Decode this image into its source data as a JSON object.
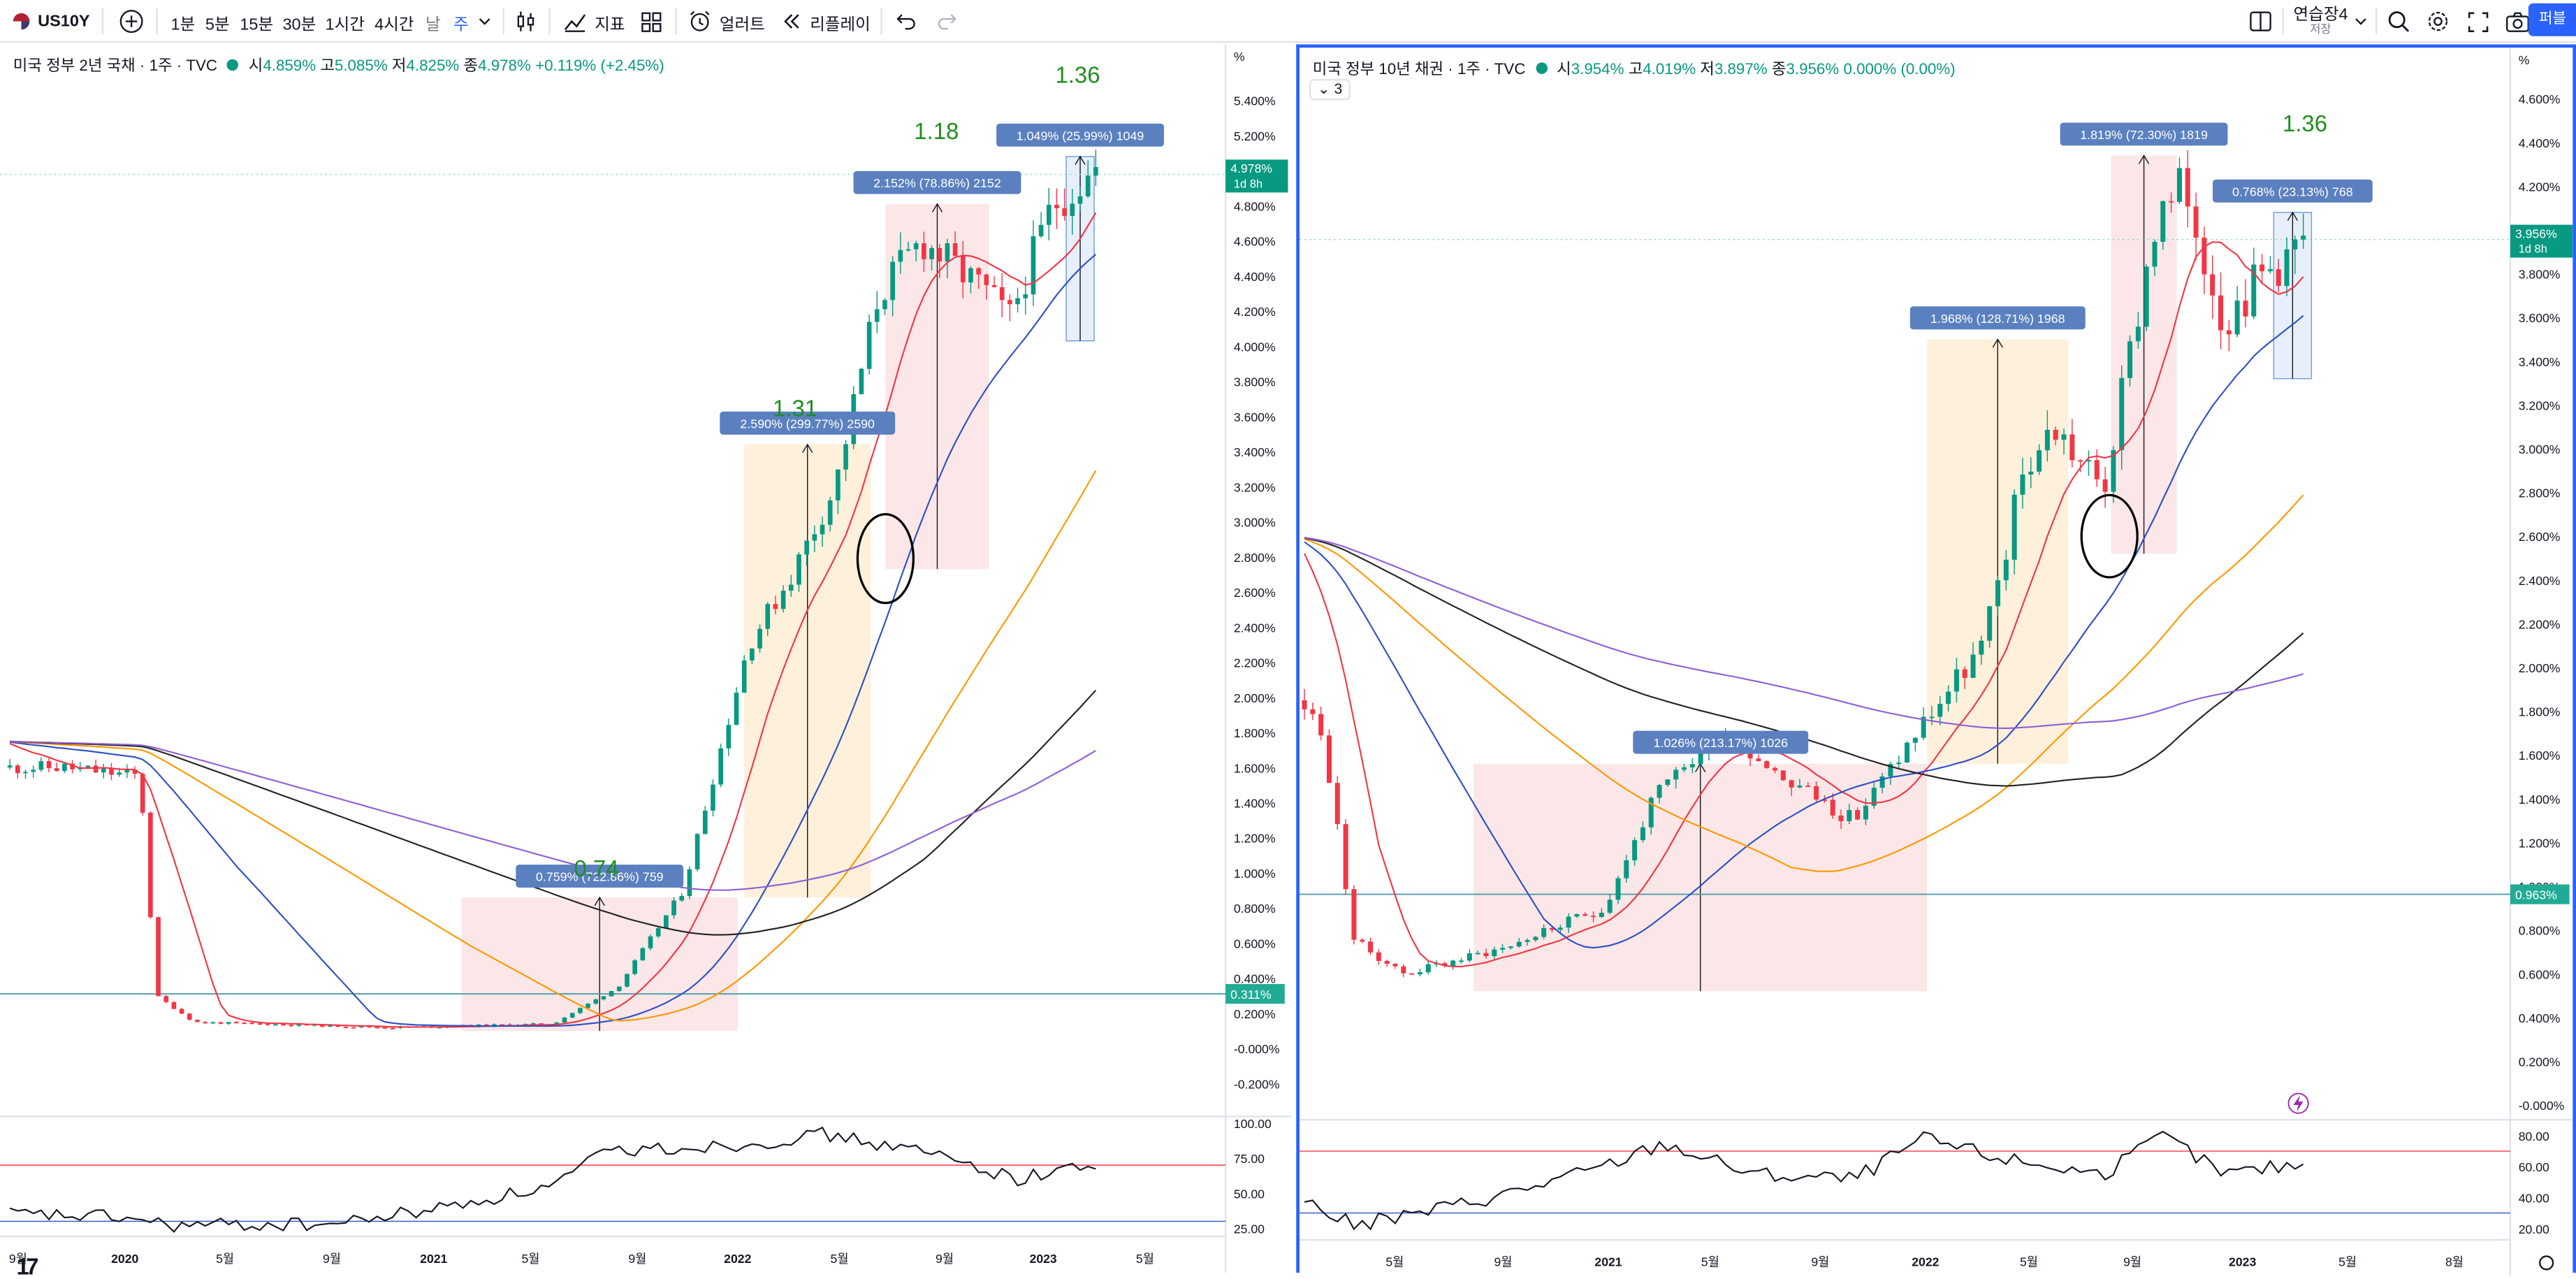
{
  "toolbar": {
    "symbol": "US10Y",
    "intervals": [
      "1분",
      "5분",
      "15분",
      "30분",
      "1시간",
      "4시간",
      "날",
      "주"
    ],
    "indicators_label": "지표",
    "alert_label": "얼러트",
    "replay_label": "리플레이",
    "layout_name": "연습장4",
    "layout_sub": "저장",
    "publish_label": "퍼블"
  },
  "left_chart": {
    "title": "미국 정부 2년 국채 · 1주 · TVC",
    "ohlc": {
      "o_label": "시",
      "o": "4.859%",
      "h_label": "고",
      "h": "5.085%",
      "l_label": "저",
      "l": "4.825%",
      "c_label": "종",
      "c": "4.978%",
      "change": "+0.119% (+2.45%)"
    },
    "axis_unit": "%",
    "y_ticks": [
      "5.400%",
      "5.200%",
      "5.000%",
      "4.800%",
      "4.600%",
      "4.400%",
      "4.200%",
      "4.000%",
      "3.800%",
      "3.600%",
      "3.400%",
      "3.200%",
      "3.000%",
      "2.800%",
      "2.600%",
      "2.400%",
      "2.200%",
      "2.000%",
      "1.800%",
      "1.600%",
      "1.400%",
      "1.200%",
      "1.000%",
      "0.800%",
      "0.600%",
      "0.400%",
      "0.200%",
      "-0.000%",
      "-0.200%"
    ],
    "price_label": "4.978%",
    "countdown": "1d 8h",
    "hline_label": "0.311%",
    "rsi_ticks": [
      "100.00",
      "75.00",
      "50.00",
      "25.00"
    ],
    "x_ticks": [
      "9월",
      "2020",
      "5월",
      "9월",
      "2021",
      "5월",
      "9월",
      "2022",
      "5월",
      "9월",
      "2023",
      "5월"
    ],
    "measurements": [
      "0.759% (722.86%) 759",
      "2.590% (299.77%) 2590",
      "2.152% (78.86%) 2152",
      "1.049% (25.99%) 1049"
    ],
    "annotations": [
      "0.74",
      "1.31",
      "1.18",
      "1.36"
    ]
  },
  "right_chart": {
    "title": "미국 정부 10년 채권 · 1주 · TVC",
    "ohlc": {
      "o_label": "시",
      "o": "3.954%",
      "h_label": "고",
      "h": "4.019%",
      "l_label": "저",
      "l": "3.897%",
      "c_label": "종",
      "c": "3.956%",
      "change": "0.000% (0.00%)"
    },
    "collapse_label": "3",
    "axis_unit": "%",
    "y_ticks": [
      "4.600%",
      "4.400%",
      "4.200%",
      "4.000%",
      "3.800%",
      "3.600%",
      "3.400%",
      "3.200%",
      "3.000%",
      "2.800%",
      "2.600%",
      "2.400%",
      "2.200%",
      "2.000%",
      "1.800%",
      "1.600%",
      "1.400%",
      "1.200%",
      "1.000%",
      "0.800%",
      "0.600%",
      "0.400%",
      "0.200%",
      "-0.000%"
    ],
    "price_label": "3.956%",
    "countdown": "1d 8h",
    "hline_label": "0.963%",
    "rsi_ticks": [
      "80.00",
      "60.00",
      "40.00",
      "20.00"
    ],
    "x_ticks": [
      "5월",
      "9월",
      "2021",
      "5월",
      "9월",
      "2022",
      "5월",
      "9월",
      "2023",
      "5월",
      "8월"
    ],
    "measurements": [
      "1.026% (213.17%) 1026",
      "1.968% (128.71%) 1968",
      "1.819% (72.30%) 1819",
      "0.768% (23.13%) 768"
    ],
    "annotations": [
      "1.36"
    ]
  },
  "colors": {
    "up": "#089981",
    "down": "#f23645",
    "ma_red": "#f23645",
    "ma_blue": "#2e4fc4",
    "ma_orange": "#ff9800",
    "ma_black": "#222222",
    "ma_purple": "#8e5fd6",
    "measure_label": "#5b80c0",
    "annotation_green": "#1e8e1e",
    "accent": "#2962ff"
  }
}
